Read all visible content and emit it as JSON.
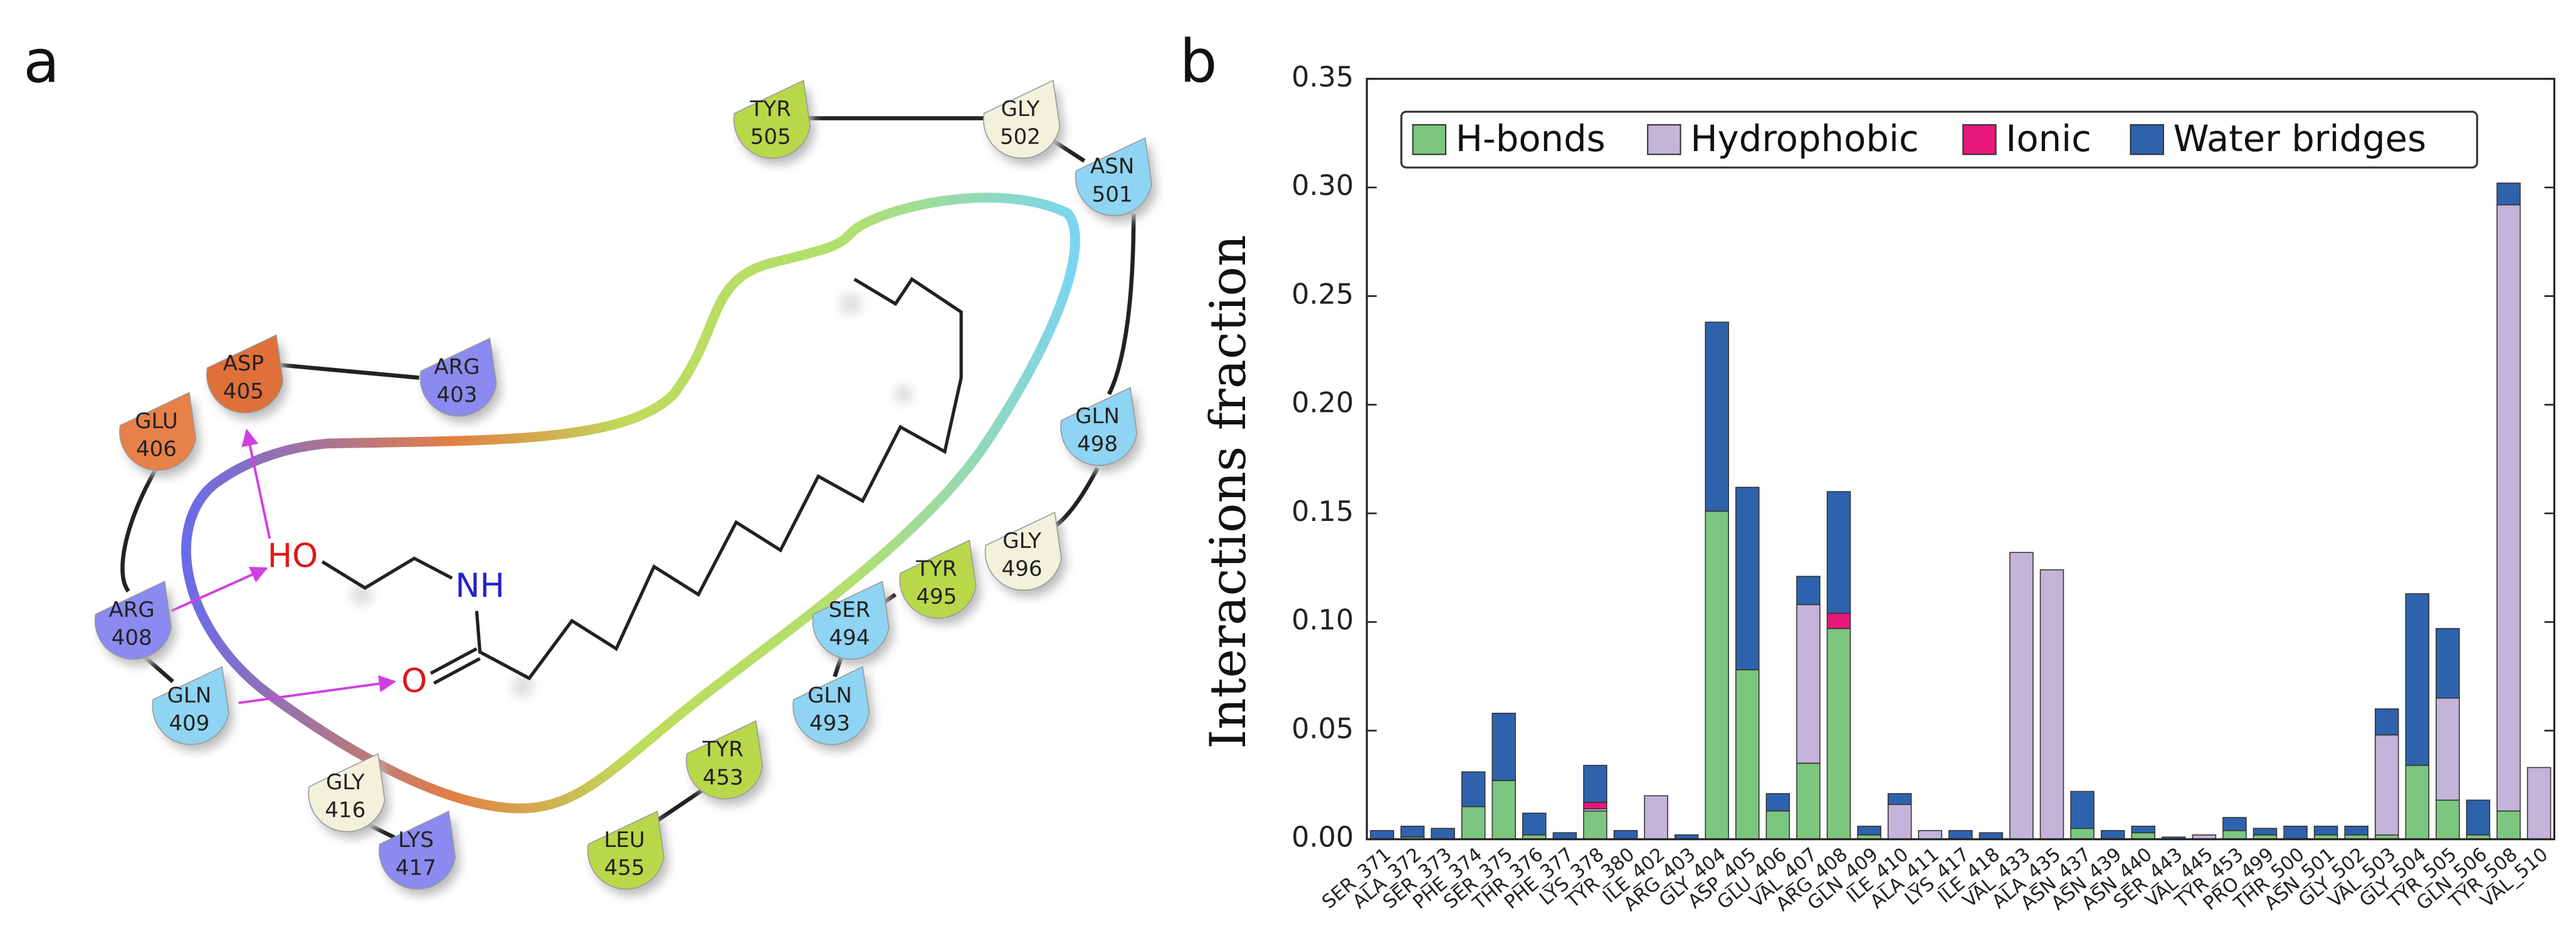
{
  "panel_labels": [
    "a",
    "b"
  ],
  "diagram": {
    "residues": [
      {
        "name": "TYR",
        "number": "505",
        "color": "#b8d84a"
      },
      {
        "name": "GLY",
        "number": "502",
        "color": "#f2f2dc"
      },
      {
        "name": "ASN",
        "number": "501",
        "color": "#8fd4f2"
      },
      {
        "name": "ARG",
        "number": "403",
        "color": "#8a8af0"
      },
      {
        "name": "ASP",
        "number": "405",
        "color": "#e0703a"
      },
      {
        "name": "GLU",
        "number": "406",
        "color": "#e8804a"
      },
      {
        "name": "GLN",
        "number": "498",
        "color": "#8fd4f2"
      },
      {
        "name": "GLY",
        "number": "496",
        "color": "#f2f2dc"
      },
      {
        "name": "TYR",
        "number": "495",
        "color": "#b8d84a"
      },
      {
        "name": "SER",
        "number": "494",
        "color": "#8fd4f2"
      },
      {
        "name": "GLN",
        "number": "493",
        "color": "#8fd4f2"
      },
      {
        "name": "ARG",
        "number": "408",
        "color": "#8a8af0"
      },
      {
        "name": "GLN",
        "number": "409",
        "color": "#8fd4f2"
      },
      {
        "name": "TYR",
        "number": "453",
        "color": "#b8d84a"
      },
      {
        "name": "GLY",
        "number": "416",
        "color": "#f2f2dc"
      },
      {
        "name": "LYS",
        "number": "417",
        "color": "#8a8af0"
      },
      {
        "name": "LEU",
        "number": "455",
        "color": "#b8d84a"
      }
    ],
    "ligand_atoms": [
      "HO",
      "NH",
      "O"
    ]
  },
  "chart_data": {
    "type": "stacked_bar",
    "y_label": "Interactions fraction",
    "categories": [
      "SER_371",
      "ALA_372",
      "SER_373",
      "PHE_374",
      "SER_375",
      "THR_376",
      "PHE_377",
      "LYS_378",
      "TYR_380",
      "ILE_402",
      "ARG_403",
      "GLY_404",
      "ASP_405",
      "GLU_406",
      "VAL_407",
      "ARG_408",
      "GLN_409",
      "ILE_410",
      "ALA_411",
      "LYS_417",
      "ILE_418",
      "VAL_433",
      "ALA_435",
      "ASN_437",
      "ASN_439",
      "ASN_440",
      "SER_443",
      "VAL_445",
      "TYR_453",
      "PRO_499",
      "THR_500",
      "ASN_501",
      "GLY_502",
      "VAL_503",
      "GLY_504",
      "TYR_505",
      "GLN_506",
      "TYR_508",
      "VAL_510"
    ],
    "series": [
      {
        "name": "H-bonds",
        "color": "#7cc67f",
        "values": [
          0,
          0.001,
          0,
          0.015,
          0.027,
          0.002,
          0,
          0.013,
          0,
          0,
          0,
          0.151,
          0.078,
          0.013,
          0.035,
          0.097,
          0.002,
          0,
          0,
          0,
          0,
          0,
          0,
          0.005,
          0,
          0.003,
          0,
          0,
          0.004,
          0.002,
          0,
          0.002,
          0.002,
          0.002,
          0.034,
          0.018,
          0.002,
          0.013,
          0
        ]
      },
      {
        "name": "Hydrophobic",
        "color": "#c4b4d9",
        "values": [
          0,
          0,
          0,
          0,
          0,
          0,
          0,
          0.001,
          0,
          0.02,
          0,
          0,
          0,
          0,
          0.073,
          0,
          0,
          0.016,
          0.004,
          0,
          0,
          0.132,
          0.124,
          0,
          0,
          0,
          0,
          0.002,
          0,
          0,
          0,
          0,
          0,
          0.046,
          0,
          0.047,
          0,
          0.279,
          0.033
        ]
      },
      {
        "name": "Ionic",
        "color": "#e8187a",
        "values": [
          0,
          0,
          0,
          0,
          0,
          0,
          0,
          0.003,
          0,
          0,
          0,
          0,
          0,
          0,
          0,
          0.007,
          0,
          0,
          0,
          0,
          0,
          0,
          0,
          0,
          0,
          0,
          0,
          0,
          0,
          0,
          0,
          0,
          0,
          0,
          0,
          0,
          0,
          0,
          0
        ]
      },
      {
        "name": "Water bridges",
        "color": "#2f62ad",
        "values": [
          0.004,
          0.005,
          0.005,
          0.016,
          0.031,
          0.01,
          0.003,
          0.017,
          0.004,
          0,
          0.002,
          0.087,
          0.084,
          0.008,
          0.013,
          0.056,
          0.004,
          0.005,
          0,
          0.004,
          0.003,
          0,
          0,
          0.017,
          0.004,
          0.003,
          0.001,
          0,
          0.006,
          0.003,
          0.006,
          0.004,
          0.004,
          0.012,
          0.079,
          0.032,
          0.016,
          0.01,
          0
        ]
      }
    ],
    "ylim": [
      0,
      0.35
    ],
    "yticks": [
      {
        "value": 0,
        "label": "0.00"
      },
      {
        "value": 0.05,
        "label": "0.05"
      },
      {
        "value": 0.1,
        "label": "0.10"
      },
      {
        "value": 0.15,
        "label": "0.15"
      },
      {
        "value": 0.2,
        "label": "0.20"
      },
      {
        "value": 0.25,
        "label": "0.25"
      },
      {
        "value": 0.3,
        "label": "0.30"
      },
      {
        "value": 0.35,
        "label": "0.35"
      }
    ]
  }
}
